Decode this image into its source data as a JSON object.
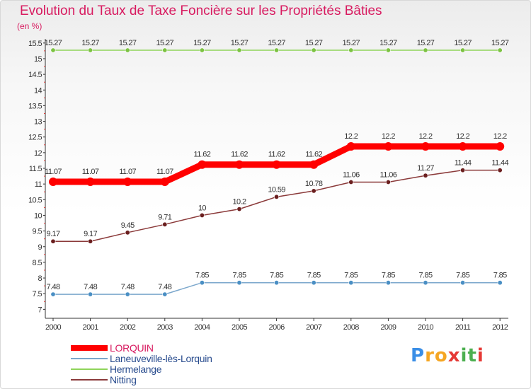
{
  "header": {
    "title": "Evolution du Taux de Taxe Foncière sur les Propriétés Bâties",
    "unit_label": "(en %)"
  },
  "chart_data": {
    "type": "line",
    "title": "Evolution du Taux de Taxe Foncière sur les Propriétés Bâties",
    "ylabel": "(en %)",
    "xlabel": "",
    "x": [
      "2000",
      "2001",
      "2002",
      "2003",
      "2004",
      "2005",
      "2006",
      "2007",
      "2008",
      "2009",
      "2010",
      "2011",
      "2012"
    ],
    "ylim": [
      7,
      15.5
    ],
    "yticks": [
      "7",
      "7.5",
      "8",
      "8.5",
      "9",
      "9.5",
      "10",
      "10.5",
      "11",
      "11.5",
      "12",
      "12.5",
      "13",
      "13.5",
      "14",
      "14.5",
      "15",
      "15.5"
    ],
    "grid": false,
    "legend_position": "bottom-left",
    "series": [
      {
        "name": "LORQUIN",
        "color": "#ff0000",
        "line_weight": "thick",
        "marker": "#ff0000",
        "values": [
          11.07,
          11.07,
          11.07,
          11.07,
          11.62,
          11.62,
          11.62,
          11.62,
          12.2,
          12.2,
          12.2,
          12.2,
          12.2
        ],
        "labels": [
          "11.07",
          "11.07",
          "11.07",
          "11.07",
          "11.62",
          "11.62",
          "11.62",
          "11.62",
          "12.2",
          "12.2",
          "12.2",
          "12.2",
          "12.2"
        ]
      },
      {
        "name": "Laneuveville-lès-Lorquin",
        "color": "#7ba7cc",
        "line_weight": "thin",
        "marker": "#4a8fc4",
        "values": [
          7.48,
          7.48,
          7.48,
          7.48,
          7.85,
          7.85,
          7.85,
          7.85,
          7.85,
          7.85,
          7.85,
          7.85,
          7.85
        ],
        "labels": [
          "7.48",
          "7.48",
          "7.48",
          "7.48",
          "7.85",
          "7.85",
          "7.85",
          "7.85",
          "7.85",
          "7.85",
          "7.85",
          "7.85",
          "7.85"
        ]
      },
      {
        "name": "Hermelange",
        "color": "#8fd45a",
        "line_weight": "thin",
        "marker": "#7cc242",
        "values": [
          15.27,
          15.27,
          15.27,
          15.27,
          15.27,
          15.27,
          15.27,
          15.27,
          15.27,
          15.27,
          15.27,
          15.27,
          15.27
        ],
        "labels": [
          "15.27",
          "15.27",
          "15.27",
          "15.27",
          "15.27",
          "15.27",
          "15.27",
          "15.27",
          "15.27",
          "15.27",
          "15.27",
          "15.27",
          "15.27"
        ]
      },
      {
        "name": "Nitting",
        "color": "#8b3a3a",
        "line_weight": "thin",
        "marker": "#6b1f1f",
        "values": [
          9.17,
          9.17,
          9.45,
          9.71,
          10,
          10.2,
          10.59,
          10.78,
          11.06,
          11.06,
          11.27,
          11.44,
          11.44
        ],
        "labels": [
          "9.17",
          "9.17",
          "9.45",
          "9.71",
          "10",
          "10.2",
          "10.59",
          "10.78",
          "11.06",
          "11.06",
          "11.27",
          "11.44",
          "11.44"
        ]
      }
    ]
  },
  "legend": {
    "items": [
      {
        "label": "LORQUIN",
        "color": "#ff0000",
        "text_color": "#d81b60"
      },
      {
        "label": "Laneuveville-lès-Lorquin",
        "color": "#7ba7cc",
        "text_color": "#2a4d8f"
      },
      {
        "label": "Hermelange",
        "color": "#8fd45a",
        "text_color": "#2a4d8f"
      },
      {
        "label": "Nitting",
        "color": "#8b3a3a",
        "text_color": "#2a4d8f"
      }
    ]
  },
  "logo": {
    "text": "Proxiti",
    "letters": [
      {
        "ch": "P",
        "color": "#3a8ee6"
      },
      {
        "ch": "r",
        "color": "#f5a623"
      },
      {
        "ch": "o",
        "color": "#f5a623"
      },
      {
        "ch": "x",
        "color": "#e53935"
      },
      {
        "ch": "i",
        "color": "#4caf50"
      },
      {
        "ch": "t",
        "color": "#4caf50"
      },
      {
        "ch": "i",
        "color": "#e53935"
      }
    ]
  }
}
